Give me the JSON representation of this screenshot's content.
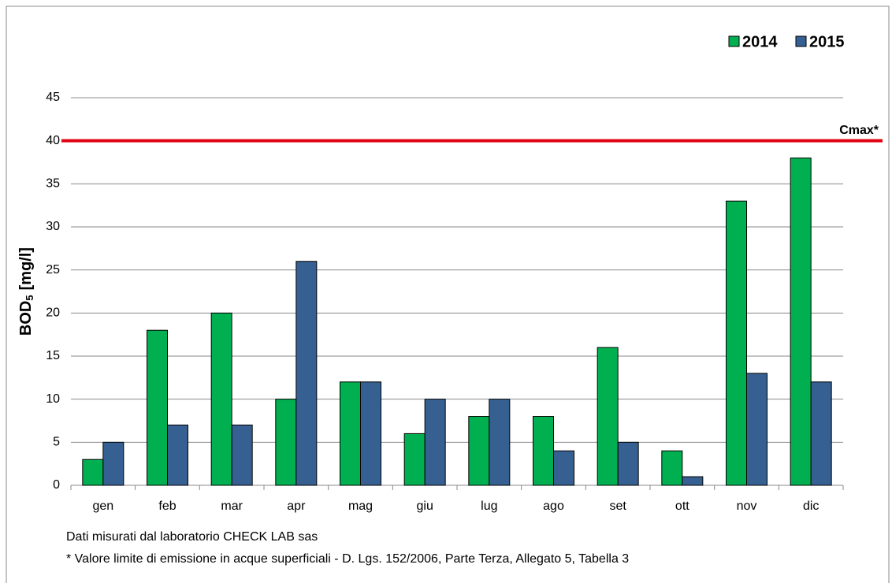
{
  "chart_data": {
    "type": "bar",
    "y_label": [
      "BOD",
      "5",
      "[mg/l]"
    ],
    "categories": [
      "gen",
      "feb",
      "mar",
      "apr",
      "mag",
      "giu",
      "lug",
      "ago",
      "set",
      "ott",
      "nov",
      "dic"
    ],
    "series": [
      {
        "name": "2014",
        "color": "#00b050",
        "values": [
          3,
          18,
          20,
          10,
          12,
          6,
          8,
          8,
          16,
          4,
          33,
          38
        ]
      },
      {
        "name": "2015",
        "color": "#376092",
        "values": [
          5,
          7,
          7,
          26,
          12,
          10,
          10,
          4,
          5,
          1,
          13,
          12
        ]
      }
    ],
    "ylim": [
      0,
      45
    ],
    "yticks": [
      0,
      5,
      10,
      15,
      20,
      25,
      30,
      35,
      40,
      45
    ],
    "grid": true,
    "legend": "top-right",
    "reference_line": {
      "value": 40,
      "label": "Cmax*",
      "color": "#e0000f"
    },
    "notes": [
      "Dati misurati dal laboratorio CHECK LAB sas",
      "* Valore limite di emissione in acque superficiali - D. Lgs. 152/2006, Parte Terza, Allegato 5, Tabella 3"
    ]
  }
}
